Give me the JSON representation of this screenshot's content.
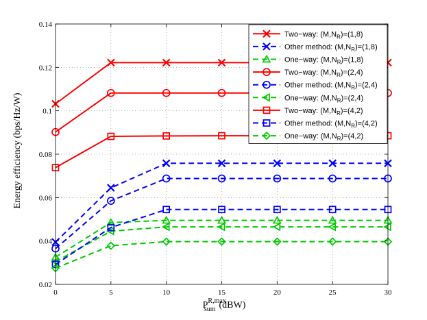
{
  "chart_data": {
    "type": "line",
    "title": "",
    "xlabel_base": "P",
    "xlabel_sup": "R,max",
    "xlabel_sub": "sum",
    "xlabel_unit": "(dBW)",
    "ylabel": "Energy efficiency (bps/Hz/W)",
    "x": [
      0,
      5,
      10,
      15,
      20,
      25,
      30
    ],
    "xlim": [
      0,
      30
    ],
    "ylim": [
      0.02,
      0.14
    ],
    "xticks": [
      "0",
      "5",
      "10",
      "15",
      "20",
      "25",
      "30"
    ],
    "yticks": [
      "0.02",
      "0.04",
      "0.06",
      "0.08",
      "0.1",
      "0.12",
      "0.14"
    ],
    "ytick_values": [
      0.02,
      0.04,
      0.06,
      0.08,
      0.1,
      0.12,
      0.14
    ],
    "grid": true,
    "legend_position": "top-right",
    "series": [
      {
        "name": "Two−way: (M,N",
        "sub": "R",
        "suffix": ")=(1,8)",
        "color": "#ff0000",
        "dash": "solid",
        "marker": "x",
        "values": [
          0.1032,
          0.1222,
          0.1222,
          0.1222,
          0.1222,
          0.1222,
          0.1222
        ]
      },
      {
        "name": "Other method: (M,N",
        "sub": "R",
        "suffix": ")=(1,8)",
        "color": "#0000ff",
        "dash": "dashed",
        "marker": "x",
        "values": [
          0.0395,
          0.0645,
          0.0758,
          0.0758,
          0.0758,
          0.0758,
          0.0758
        ]
      },
      {
        "name": "One−way: (M,N",
        "sub": "R",
        "suffix": ")=(1,8)",
        "color": "#00cc00",
        "dash": "dashed",
        "marker": "triangle-up",
        "values": [
          0.0325,
          0.0485,
          0.0495,
          0.0495,
          0.0495,
          0.0495,
          0.0495
        ]
      },
      {
        "name": "Two−way: (M,N",
        "sub": "R",
        "suffix": ")=(2,4)",
        "color": "#ff0000",
        "dash": "solid",
        "marker": "circle",
        "values": [
          0.0902,
          0.1082,
          0.1082,
          0.1082,
          0.1082,
          0.1082,
          0.1082
        ]
      },
      {
        "name": "Other method: (M,N",
        "sub": "R",
        "suffix": ")=(2,4)",
        "color": "#0000ff",
        "dash": "dashed",
        "marker": "circle",
        "values": [
          0.0365,
          0.0585,
          0.0688,
          0.0688,
          0.0688,
          0.0688,
          0.0688
        ]
      },
      {
        "name": "One−way: (M,N",
        "sub": "R",
        "suffix": ")=(2,4)",
        "color": "#00cc00",
        "dash": "dashed",
        "marker": "triangle-left",
        "values": [
          0.0305,
          0.0445,
          0.0465,
          0.0465,
          0.0465,
          0.0465,
          0.0465
        ]
      },
      {
        "name": "Two−way: (M,N",
        "sub": "R",
        "suffix": ")=(4,2)",
        "color": "#ff0000",
        "dash": "solid",
        "marker": "square",
        "values": [
          0.0738,
          0.0882,
          0.0884,
          0.0885,
          0.0885,
          0.0885,
          0.0885
        ]
      },
      {
        "name": "Other method: (M,N",
        "sub": "R",
        "suffix": ")=(4,2)",
        "color": "#0000ff",
        "dash": "dashed",
        "marker": "square",
        "values": [
          0.0292,
          0.0462,
          0.0545,
          0.0545,
          0.0545,
          0.0545,
          0.0545
        ]
      },
      {
        "name": "One−way: (M,N",
        "sub": "R",
        "suffix": ")=(4,2)",
        "color": "#00cc00",
        "dash": "dashed",
        "marker": "diamond",
        "values": [
          0.0275,
          0.0378,
          0.0397,
          0.0397,
          0.0397,
          0.0397,
          0.0397
        ]
      }
    ]
  }
}
